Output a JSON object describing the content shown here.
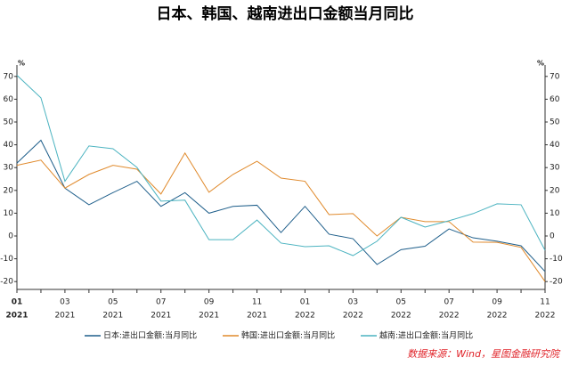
{
  "chart_data": {
    "type": "line",
    "title": "日本、韩国、越南进出口金额当月同比",
    "unit_left": "%",
    "unit_right": "%",
    "source": "数据来源：Wind，星图金融研究院",
    "categories": [
      [
        "01",
        "2021"
      ],
      null,
      [
        "03",
        "2021"
      ],
      null,
      [
        "05",
        "2021"
      ],
      null,
      [
        "07",
        "2021"
      ],
      null,
      [
        "09",
        "2021"
      ],
      null,
      [
        "11",
        "2021"
      ],
      null,
      [
        "01",
        "2022"
      ],
      null,
      [
        "03",
        "2022"
      ],
      null,
      [
        "05",
        "2022"
      ],
      null,
      [
        "07",
        "2022"
      ],
      null,
      [
        "09",
        "2022"
      ],
      null,
      [
        "11",
        "2022"
      ]
    ],
    "series": [
      {
        "name": "日本:进出口金额:当月同比",
        "color": "#1f5f8b",
        "values": [
          32,
          42,
          21,
          13.7,
          19,
          24,
          13,
          19,
          10,
          13,
          13.5,
          1.5,
          13,
          0.8,
          -1.2,
          -12.5,
          -6,
          -4.5,
          3.1,
          -0.8,
          -2.3,
          -4.3,
          -15.6
        ]
      },
      {
        "name": "韩国:进出口金额:当月同比",
        "color": "#e08a2c",
        "values": [
          31,
          33.3,
          21,
          27,
          31,
          29.3,
          18.4,
          36.4,
          19.2,
          27,
          32.8,
          25.4,
          24,
          9.4,
          9.8,
          0,
          8.2,
          6.3,
          6.3,
          -2.7,
          -2.8,
          -5,
          -20
        ]
      },
      {
        "name": "越南:进出口金额:当月同比",
        "color": "#4bb3c0",
        "values": [
          70.5,
          60.6,
          24,
          39.5,
          38.3,
          30.1,
          15.3,
          15.7,
          -1.6,
          -1.6,
          7,
          -3.1,
          -4.7,
          -4.3,
          -8.6,
          -2.3,
          8.2,
          3.9,
          6.7,
          9.8,
          14.1,
          13.7,
          -6.3
        ]
      }
    ],
    "ylim": [
      -25,
      75
    ],
    "yticks": [
      -20,
      -10,
      0,
      10,
      20,
      30,
      40,
      50,
      60,
      70
    ],
    "y2lim": [
      -25,
      75
    ],
    "y2ticks": [
      -20,
      -10,
      0,
      10,
      20,
      30,
      40,
      50,
      60,
      70
    ]
  }
}
